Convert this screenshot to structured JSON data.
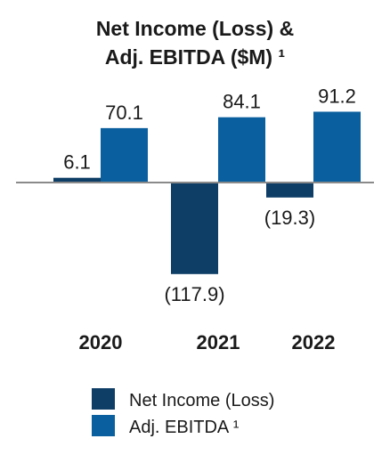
{
  "chart_data": {
    "type": "bar",
    "title_lines": [
      "Net Income  (Loss) &",
      "Adj. EBITDA ($M) ¹"
    ],
    "categories": [
      "2020",
      "2021",
      "2022"
    ],
    "series": [
      {
        "name": "Net Income (Loss)",
        "color": "#0e3d66",
        "values": [
          6.1,
          -117.9,
          -19.3
        ],
        "labels": [
          "6.1",
          "(117.9)",
          "(19.3)"
        ]
      },
      {
        "name": "Adj. EBITDA ¹",
        "color": "#0a5f9e",
        "values": [
          70.1,
          84.1,
          91.2
        ],
        "labels": [
          "70.1",
          "84.1",
          "91.2"
        ]
      }
    ],
    "ylim": [
      -117.9,
      91.2
    ],
    "grid": false,
    "legend_position": "bottom"
  }
}
